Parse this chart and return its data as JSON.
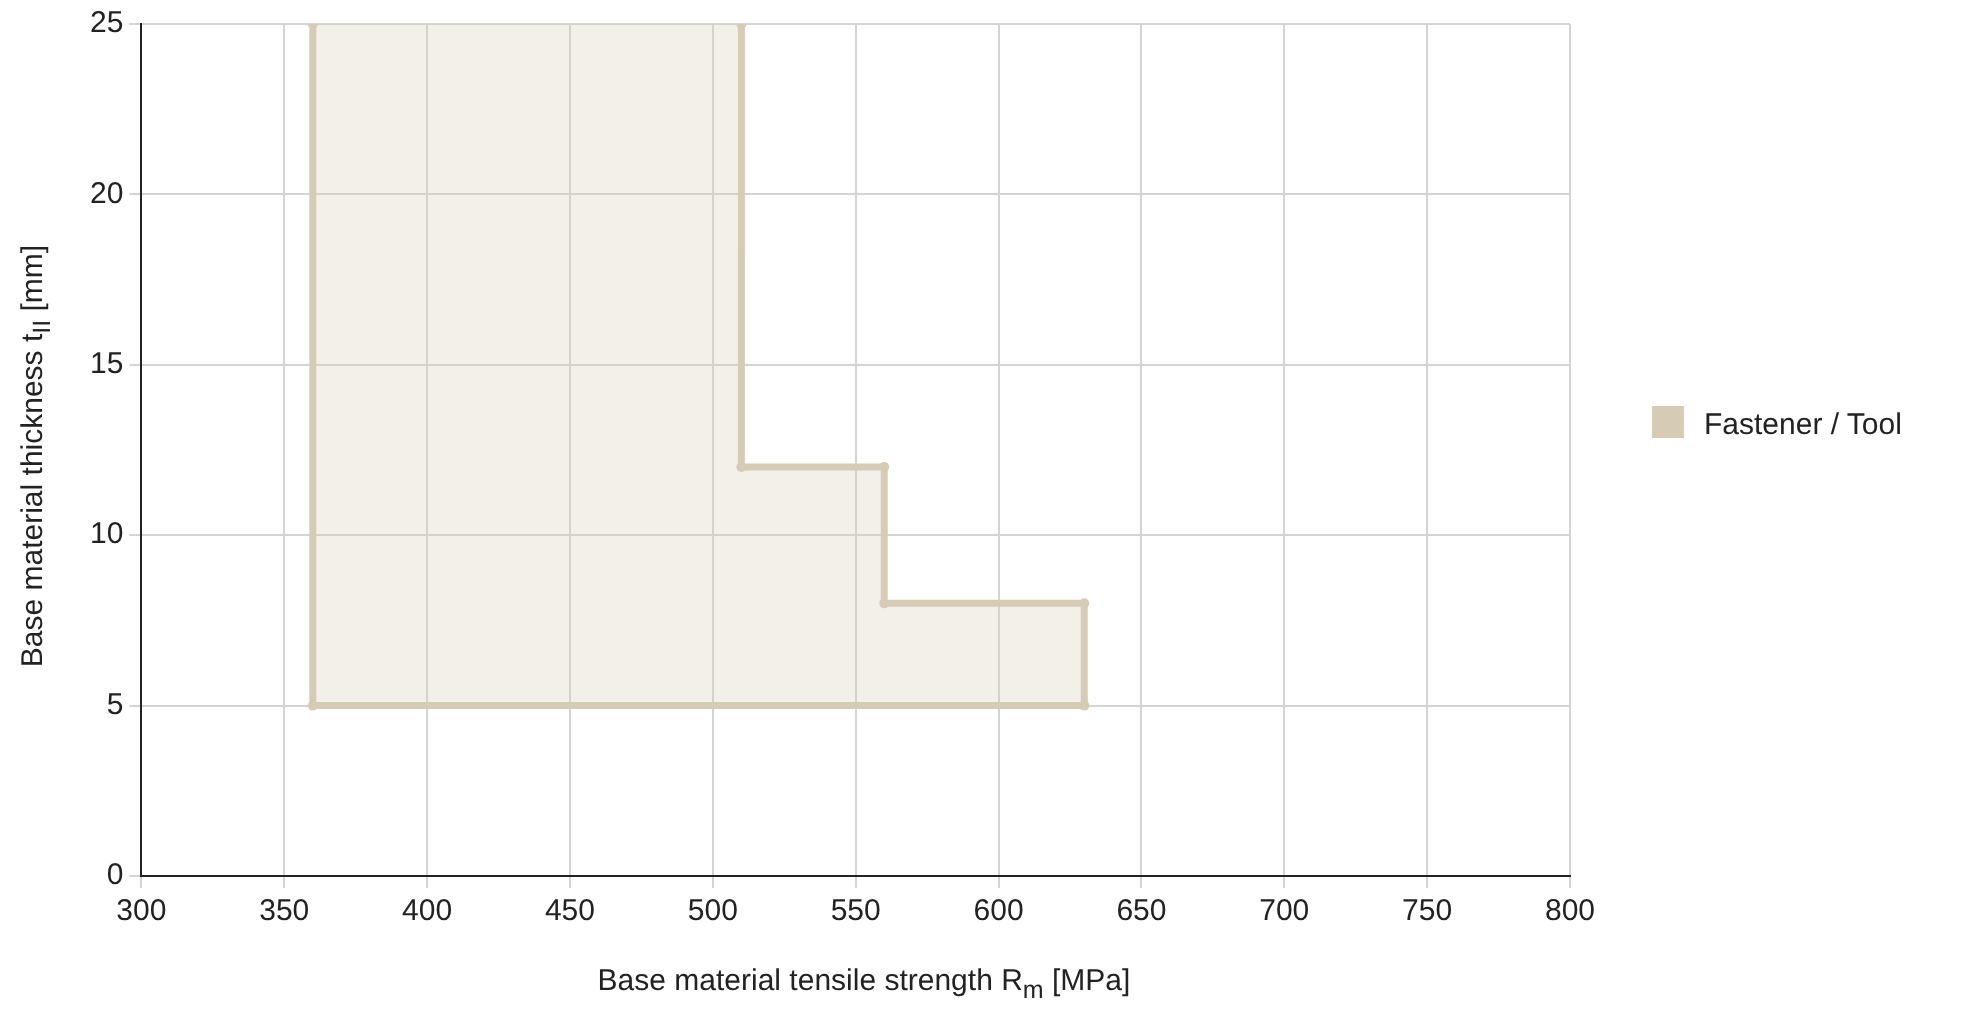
{
  "chart_data": {
    "type": "area",
    "xlabel": "Base material tensile strength R$_{m}$ [MPa]",
    "ylabel": "Base material thickness t$_{II}$ [mm]",
    "series": [
      {
        "name": "Fastener / Tool",
        "color": "#d6cbb5",
        "x": [
          360,
          360,
          630,
          630,
          560,
          560,
          510,
          510
        ],
        "values": [
          25,
          5,
          5,
          8,
          8,
          12,
          12,
          25
        ]
      }
    ],
    "xlim": [
      300,
      800
    ],
    "xticks": [
      300,
      350,
      400,
      450,
      500,
      550,
      600,
      650,
      700,
      750,
      800
    ],
    "ylim": [
      0,
      25
    ],
    "yticks": [
      0,
      5,
      10,
      15,
      20,
      25
    ],
    "grid": true,
    "legend": "right",
    "marker": "circle"
  }
}
